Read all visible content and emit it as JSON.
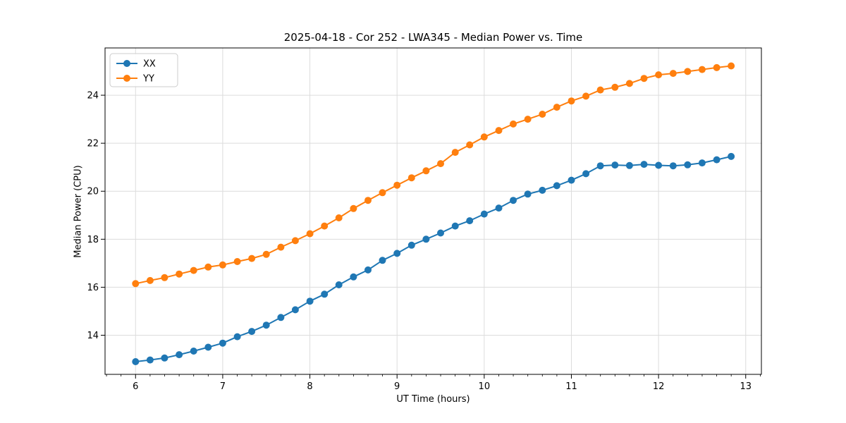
{
  "figure": {
    "background": "#ffffff"
  },
  "colors": {
    "series_xx": "#1f77b4",
    "series_yy": "#ff7f0e",
    "grid": "#dcdcdc",
    "spine": "#000000",
    "tick": "#000000",
    "legend_border": "#cccccc",
    "legend_background": "#ffffff"
  },
  "chart_data": {
    "type": "line",
    "title": "2025-04-18 - Cor 252 - LWA345 - Median Power vs. Time",
    "xlabel": "UT Time (hours)",
    "ylabel": "Median Power (CPU)",
    "xlim": [
      5.65,
      13.18
    ],
    "ylim": [
      12.37,
      25.97
    ],
    "x_ticks": [
      6,
      7,
      8,
      9,
      10,
      11,
      12,
      13
    ],
    "y_ticks": [
      14,
      16,
      18,
      20,
      22,
      24
    ],
    "x_minor_tick_step": 0.16667,
    "grid": true,
    "legend_position": "upper-left",
    "marker": "circle",
    "x": [
      6.0,
      6.167,
      6.333,
      6.5,
      6.667,
      6.833,
      7.0,
      7.167,
      7.333,
      7.5,
      7.667,
      7.833,
      8.0,
      8.167,
      8.333,
      8.5,
      8.667,
      8.833,
      9.0,
      9.167,
      9.333,
      9.5,
      9.667,
      9.833,
      10.0,
      10.167,
      10.333,
      10.5,
      10.667,
      10.833,
      11.0,
      11.167,
      11.333,
      11.5,
      11.667,
      11.833,
      12.0,
      12.167,
      12.333,
      12.5,
      12.667,
      12.833
    ],
    "series": [
      {
        "name": "XX",
        "color": "#1f77b4",
        "values": [
          12.9,
          12.97,
          13.05,
          13.19,
          13.34,
          13.5,
          13.67,
          13.94,
          14.16,
          14.42,
          14.74,
          15.06,
          15.42,
          15.71,
          16.1,
          16.43,
          16.72,
          17.12,
          17.41,
          17.75,
          18.0,
          18.26,
          18.55,
          18.77,
          19.05,
          19.3,
          19.62,
          19.88,
          20.04,
          20.23,
          20.46,
          20.73,
          21.06,
          21.09,
          21.07,
          21.12,
          21.08,
          21.06,
          21.1,
          21.18,
          21.31,
          21.45
        ]
      },
      {
        "name": "YY",
        "color": "#ff7f0e",
        "values": [
          16.15,
          16.28,
          16.4,
          16.55,
          16.7,
          16.84,
          16.93,
          17.07,
          17.2,
          17.37,
          17.67,
          17.94,
          18.23,
          18.55,
          18.89,
          19.28,
          19.62,
          19.94,
          20.25,
          20.56,
          20.85,
          21.15,
          21.62,
          21.93,
          22.26,
          22.53,
          22.8,
          23.0,
          23.21,
          23.5,
          23.76,
          23.96,
          24.22,
          24.33,
          24.49,
          24.7,
          24.85,
          24.91,
          24.99,
          25.07,
          25.15,
          25.22
        ]
      }
    ]
  }
}
